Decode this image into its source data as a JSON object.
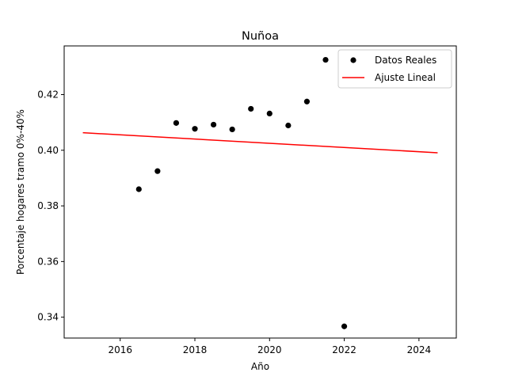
{
  "chart_data": {
    "type": "scatter",
    "title": "Nuñoa",
    "xlabel": "Año",
    "ylabel": "Porcentaje hogares tramo 0%-40%",
    "xlim": [
      2014.5,
      2025.0
    ],
    "ylim": [
      0.3325,
      0.4375
    ],
    "x_ticks": [
      2016,
      2018,
      2020,
      2022,
      2024
    ],
    "y_ticks": [
      0.34,
      0.36,
      0.38,
      0.4,
      0.42
    ],
    "y_tick_labels": [
      "0.34",
      "0.36",
      "0.38",
      "0.40",
      "0.42"
    ],
    "grid": false,
    "legend_position": "upper right",
    "series": [
      {
        "name": "Datos Reales",
        "kind": "scatter",
        "color": "#000000",
        "x": [
          2016.5,
          2017.0,
          2017.5,
          2018.0,
          2018.5,
          2019.0,
          2019.5,
          2020.0,
          2020.5,
          2021.0,
          2021.5,
          2022.0
        ],
        "y": [
          0.386,
          0.3925,
          0.4098,
          0.4077,
          0.4092,
          0.4075,
          0.4149,
          0.4132,
          0.4089,
          0.4175,
          0.4325,
          0.3367
        ]
      },
      {
        "name": "Ajuste Lineal",
        "kind": "line",
        "color": "#ff0000",
        "x": [
          2015.0,
          2024.5
        ],
        "y": [
          0.4063,
          0.3991
        ]
      }
    ]
  }
}
